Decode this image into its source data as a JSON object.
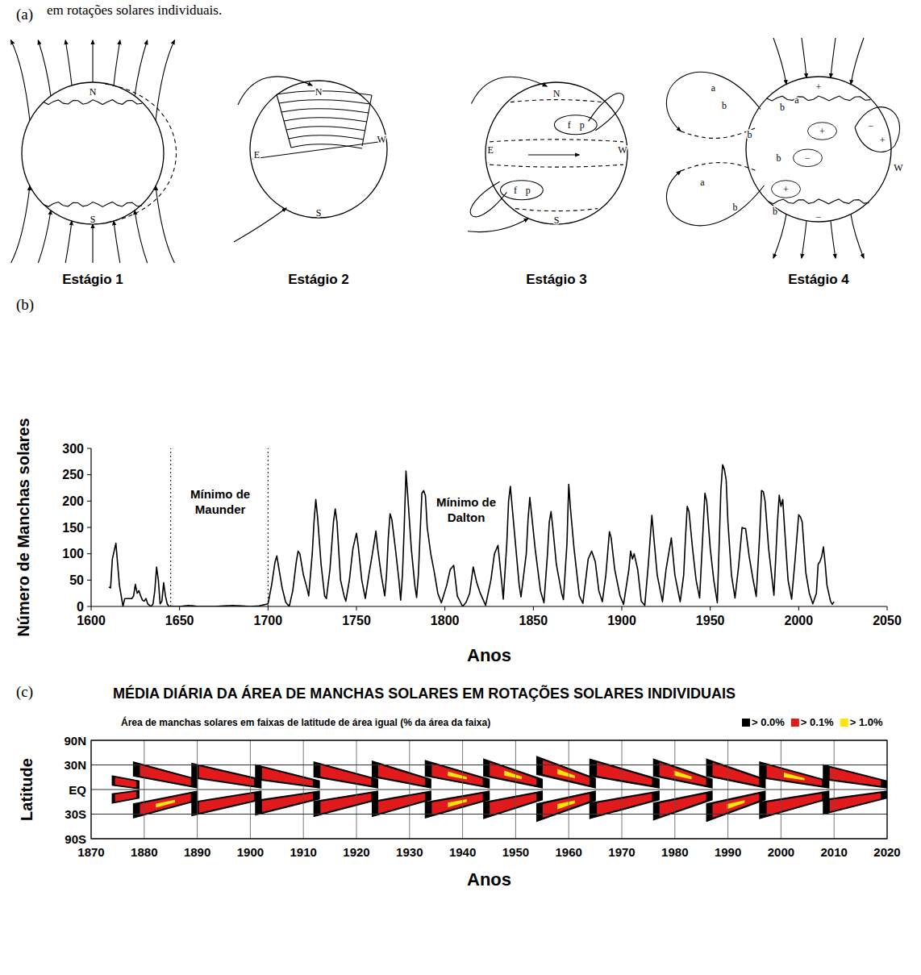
{
  "header": {
    "caption_fragment": "em rotações solares individuais.",
    "panel_labels": [
      "(a)",
      "(b)",
      "(c)"
    ]
  },
  "diagram": {
    "stages": [
      {
        "label": "Estágio 1",
        "letters": [
          "N",
          "S"
        ]
      },
      {
        "label": "Estágio 2",
        "letters": [
          "N",
          "E",
          "W",
          "S"
        ]
      },
      {
        "label": "Estágio 3",
        "letters": [
          "N",
          "E",
          "W",
          "S",
          "f",
          "p",
          "f",
          "p"
        ]
      },
      {
        "label": "Estágio 4",
        "letters": [
          "W",
          "+",
          "−",
          "a",
          "b",
          "b",
          "a",
          "b",
          "b",
          "a",
          "b",
          "b",
          "+",
          "−",
          "+",
          "−",
          "+"
        ]
      }
    ]
  },
  "chart_data": [
    {
      "type": "line",
      "x_label": "Anos",
      "y_label": "Número de Manchas solares",
      "color": "#000000",
      "xlim": [
        1600,
        2050
      ],
      "ylim": [
        0,
        300
      ],
      "xticks": [
        1600,
        1650,
        1700,
        1750,
        1800,
        1850,
        1900,
        1950,
        2000,
        2050
      ],
      "yticks": [
        0,
        50,
        100,
        150,
        200,
        250,
        300
      ],
      "grid": false,
      "reference_lines": [
        1645,
        1700
      ],
      "annotations": [
        {
          "text": "Mínimo de Maunder",
          "x": 1673,
          "y": 205
        },
        {
          "text": "Mínimo de Dalton",
          "x": 1812,
          "y": 190
        }
      ],
      "x": [
        1610,
        1611,
        1612,
        1613,
        1614,
        1615,
        1616,
        1617,
        1618,
        1619,
        1620,
        1621,
        1622,
        1623,
        1624,
        1625,
        1626,
        1627,
        1628,
        1629,
        1630,
        1631,
        1632,
        1633,
        1634,
        1635,
        1636,
        1637,
        1638,
        1639,
        1640,
        1641,
        1642,
        1643,
        1644,
        1645,
        1650,
        1655,
        1658,
        1660,
        1665,
        1670,
        1675,
        1680,
        1685,
        1690,
        1695,
        1700,
        1702,
        1704,
        1705,
        1706,
        1708,
        1710,
        1712,
        1714,
        1716,
        1717,
        1718,
        1720,
        1722,
        1723,
        1725,
        1726,
        1727,
        1728,
        1730,
        1732,
        1733,
        1735,
        1737,
        1738,
        1739,
        1741,
        1743,
        1744,
        1746,
        1748,
        1750,
        1751,
        1753,
        1755,
        1757,
        1759,
        1761,
        1762,
        1764,
        1766,
        1767,
        1768,
        1769,
        1770,
        1772,
        1774,
        1775,
        1776,
        1777,
        1778,
        1779,
        1781,
        1783,
        1784,
        1785,
        1786,
        1787,
        1788,
        1789,
        1790,
        1792,
        1794,
        1796,
        1798,
        1801,
        1803,
        1805,
        1807,
        1810,
        1812,
        1814,
        1816,
        1818,
        1820,
        1823,
        1826,
        1828,
        1830,
        1832,
        1833,
        1835,
        1836,
        1837,
        1838,
        1840,
        1842,
        1843,
        1846,
        1847,
        1848,
        1849,
        1851,
        1854,
        1856,
        1858,
        1859,
        1860,
        1861,
        1863,
        1866,
        1867,
        1869,
        1870,
        1871,
        1873,
        1876,
        1878,
        1881,
        1883,
        1885,
        1887,
        1889,
        1891,
        1893,
        1894,
        1896,
        1899,
        1901,
        1904,
        1905,
        1906,
        1907,
        1909,
        1911,
        1913,
        1915,
        1917,
        1918,
        1920,
        1923,
        1925,
        1927,
        1928,
        1930,
        1933,
        1935,
        1936,
        1937,
        1938,
        1940,
        1942,
        1944,
        1946,
        1947,
        1948,
        1950,
        1952,
        1954,
        1956,
        1957,
        1958,
        1959,
        1960,
        1962,
        1964,
        1966,
        1968,
        1969,
        1970,
        1972,
        1974,
        1976,
        1978,
        1979,
        1980,
        1981,
        1983,
        1986,
        1988,
        1989,
        1990,
        1991,
        1992,
        1994,
        1996,
        1998,
        2000,
        2001,
        2002,
        2004,
        2006,
        2008,
        2010,
        2011,
        2012,
        2013,
        2014,
        2015,
        2016,
        2018,
        2019,
        2020
      ],
      "values": [
        37,
        35,
        90,
        105,
        120,
        80,
        40,
        20,
        0,
        15,
        15,
        15,
        15,
        15,
        20,
        42,
        25,
        30,
        20,
        12,
        10,
        15,
        5,
        2,
        0,
        5,
        30,
        75,
        50,
        5,
        10,
        45,
        20,
        5,
        0,
        0,
        0,
        2,
        1,
        0,
        0,
        0,
        1,
        2,
        1,
        0,
        1,
        5,
        40,
        85,
        96,
        75,
        35,
        8,
        0,
        30,
        85,
        105,
        100,
        60,
        35,
        20,
        100,
        160,
        203,
        170,
        80,
        20,
        15,
        70,
        160,
        185,
        160,
        50,
        20,
        10,
        50,
        110,
        139,
        115,
        50,
        15,
        60,
        100,
        143,
        110,
        60,
        20,
        60,
        130,
        176,
        165,
        110,
        50,
        12,
        60,
        150,
        257,
        210,
        110,
        40,
        17,
        60,
        140,
        215,
        220,
        210,
        150,
        100,
        65,
        25,
        7,
        40,
        70,
        78,
        20,
        0,
        8,
        25,
        75,
        45,
        25,
        2,
        50,
        100,
        116,
        50,
        14,
        120,
        200,
        228,
        190,
        115,
        40,
        18,
        100,
        165,
        207,
        175,
        110,
        30,
        7,
        100,
        160,
        180,
        150,
        80,
        25,
        13,
        120,
        232,
        185,
        110,
        20,
        6,
        90,
        105,
        85,
        30,
        9,
        60,
        142,
        130,
        70,
        20,
        4,
        70,
        105,
        90,
        100,
        70,
        10,
        2,
        80,
        173,
        135,
        60,
        9,
        70,
        110,
        130,
        60,
        9,
        60,
        130,
        190,
        180,
        110,
        50,
        16,
        150,
        215,
        200,
        110,
        50,
        7,
        220,
        269,
        260,
        240,
        160,
        60,
        16,
        75,
        150,
        148,
        148,
        95,
        55,
        19,
        140,
        220,
        218,
        200,
        110,
        21,
        160,
        211,
        190,
        203,
        150,
        50,
        14,
        90,
        174,
        170,
        160,
        65,
        25,
        5,
        25,
        80,
        85,
        95,
        113,
        80,
        40,
        10,
        4,
        9
      ]
    },
    {
      "type": "heatmap",
      "title": "MÉDIA DIÁRIA DA ÁREA DE MANCHAS SOLARES EM ROTAÇÕES SOLARES INDIVIDUAIS",
      "subtitle": "Área de manchas solares em faixas de latitude de área igual (% da área da faixa)",
      "x_label": "Anos",
      "y_label": "Latitude",
      "xlim": [
        1870,
        2020
      ],
      "ylim": [
        -90,
        90
      ],
      "xticks": [
        1870,
        1880,
        1890,
        1900,
        1910,
        1920,
        1930,
        1940,
        1950,
        1960,
        1970,
        1980,
        1990,
        2000,
        2010,
        2020
      ],
      "yticks": [
        {
          "value": 90,
          "label": "90N"
        },
        {
          "value": 30,
          "label": "30N"
        },
        {
          "value": 0,
          "label": "EQ"
        },
        {
          "value": -30,
          "label": "30S"
        },
        {
          "value": -90,
          "label": "90S"
        }
      ],
      "grid": true,
      "legend": "top-right",
      "color_classes": [
        {
          "label": "> 0.0%",
          "value": 0.0,
          "color": "#000000"
        },
        {
          "label": "> 0.1%",
          "value": 0.1,
          "color": "#e31a1c"
        },
        {
          "label": "> 1.0%",
          "value": 1.0,
          "color": "#ffe600"
        }
      ],
      "wings": [
        {
          "start": 1874,
          "end": 1879,
          "lat_start": [
            16,
            5
          ],
          "lat_end": [
            10,
            1
          ],
          "max": 0.1
        },
        {
          "start": 1874,
          "end": 1879,
          "lat_start": [
            -16,
            -5
          ],
          "lat_end": [
            -10,
            -1
          ],
          "max": 0.1
        },
        {
          "start": 1878,
          "end": 1890,
          "lat_start": [
            34,
            16
          ],
          "lat_end": [
            12,
            2
          ],
          "max": 0.1
        },
        {
          "start": 1878,
          "end": 1890,
          "lat_start": [
            -35,
            -17
          ],
          "lat_end": [
            -13,
            -2
          ],
          "max": 1.0
        },
        {
          "start": 1889,
          "end": 1902,
          "lat_start": [
            32,
            14
          ],
          "lat_end": [
            12,
            2
          ],
          "max": 0.1
        },
        {
          "start": 1889,
          "end": 1902,
          "lat_start": [
            -32,
            -15
          ],
          "lat_end": [
            -12,
            -2
          ],
          "max": 0.1
        },
        {
          "start": 1901,
          "end": 1913,
          "lat_start": [
            30,
            12
          ],
          "lat_end": [
            10,
            2
          ],
          "max": 0.1
        },
        {
          "start": 1901,
          "end": 1913,
          "lat_start": [
            -31,
            -13
          ],
          "lat_end": [
            -11,
            -2
          ],
          "max": 0.1
        },
        {
          "start": 1912,
          "end": 1924,
          "lat_start": [
            34,
            15
          ],
          "lat_end": [
            12,
            2
          ],
          "max": 0.1
        },
        {
          "start": 1912,
          "end": 1924,
          "lat_start": [
            -33,
            -14
          ],
          "lat_end": [
            -12,
            -2
          ],
          "max": 0.1
        },
        {
          "start": 1923,
          "end": 1934,
          "lat_start": [
            35,
            15
          ],
          "lat_end": [
            12,
            2
          ],
          "max": 0.1
        },
        {
          "start": 1923,
          "end": 1934,
          "lat_start": [
            -33,
            -14
          ],
          "lat_end": [
            -12,
            -2
          ],
          "max": 0.1
        },
        {
          "start": 1933,
          "end": 1945,
          "lat_start": [
            36,
            16
          ],
          "lat_end": [
            12,
            2
          ],
          "max": 1.0
        },
        {
          "start": 1933,
          "end": 1945,
          "lat_start": [
            -35,
            -15
          ],
          "lat_end": [
            -12,
            -2
          ],
          "max": 1.0
        },
        {
          "start": 1944,
          "end": 1955,
          "lat_start": [
            38,
            16
          ],
          "lat_end": [
            12,
            2
          ],
          "max": 1.0
        },
        {
          "start": 1944,
          "end": 1955,
          "lat_start": [
            -36,
            -15
          ],
          "lat_end": [
            -12,
            -2
          ],
          "max": 0.1
        },
        {
          "start": 1954,
          "end": 1965,
          "lat_start": [
            42,
            18
          ],
          "lat_end": [
            13,
            2
          ],
          "max": 1.0
        },
        {
          "start": 1954,
          "end": 1965,
          "lat_start": [
            -40,
            -17
          ],
          "lat_end": [
            -13,
            -2
          ],
          "max": 1.0
        },
        {
          "start": 1964,
          "end": 1977,
          "lat_start": [
            38,
            16
          ],
          "lat_end": [
            12,
            2
          ],
          "max": 0.1
        },
        {
          "start": 1964,
          "end": 1977,
          "lat_start": [
            -36,
            -16
          ],
          "lat_end": [
            -12,
            -2
          ],
          "max": 0.1
        },
        {
          "start": 1976,
          "end": 1987,
          "lat_start": [
            38,
            16
          ],
          "lat_end": [
            12,
            2
          ],
          "max": 1.0
        },
        {
          "start": 1976,
          "end": 1987,
          "lat_start": [
            -38,
            -16
          ],
          "lat_end": [
            -12,
            -2
          ],
          "max": 0.1
        },
        {
          "start": 1986,
          "end": 1997,
          "lat_start": [
            38,
            16
          ],
          "lat_end": [
            12,
            2
          ],
          "max": 0.1
        },
        {
          "start": 1986,
          "end": 1997,
          "lat_start": [
            -40,
            -17
          ],
          "lat_end": [
            -12,
            -2
          ],
          "max": 1.0
        },
        {
          "start": 1996,
          "end": 2009,
          "lat_start": [
            34,
            14
          ],
          "lat_end": [
            10,
            2
          ],
          "max": 1.0
        },
        {
          "start": 1996,
          "end": 2009,
          "lat_start": [
            -36,
            -15
          ],
          "lat_end": [
            -11,
            -2
          ],
          "max": 0.1
        },
        {
          "start": 2008,
          "end": 2020,
          "lat_start": [
            30,
            12
          ],
          "lat_end": [
            10,
            2
          ],
          "max": 0.1
        },
        {
          "start": 2008,
          "end": 2020,
          "lat_start": [
            -30,
            -12
          ],
          "lat_end": [
            -10,
            -2
          ],
          "max": 0.1
        }
      ]
    }
  ]
}
